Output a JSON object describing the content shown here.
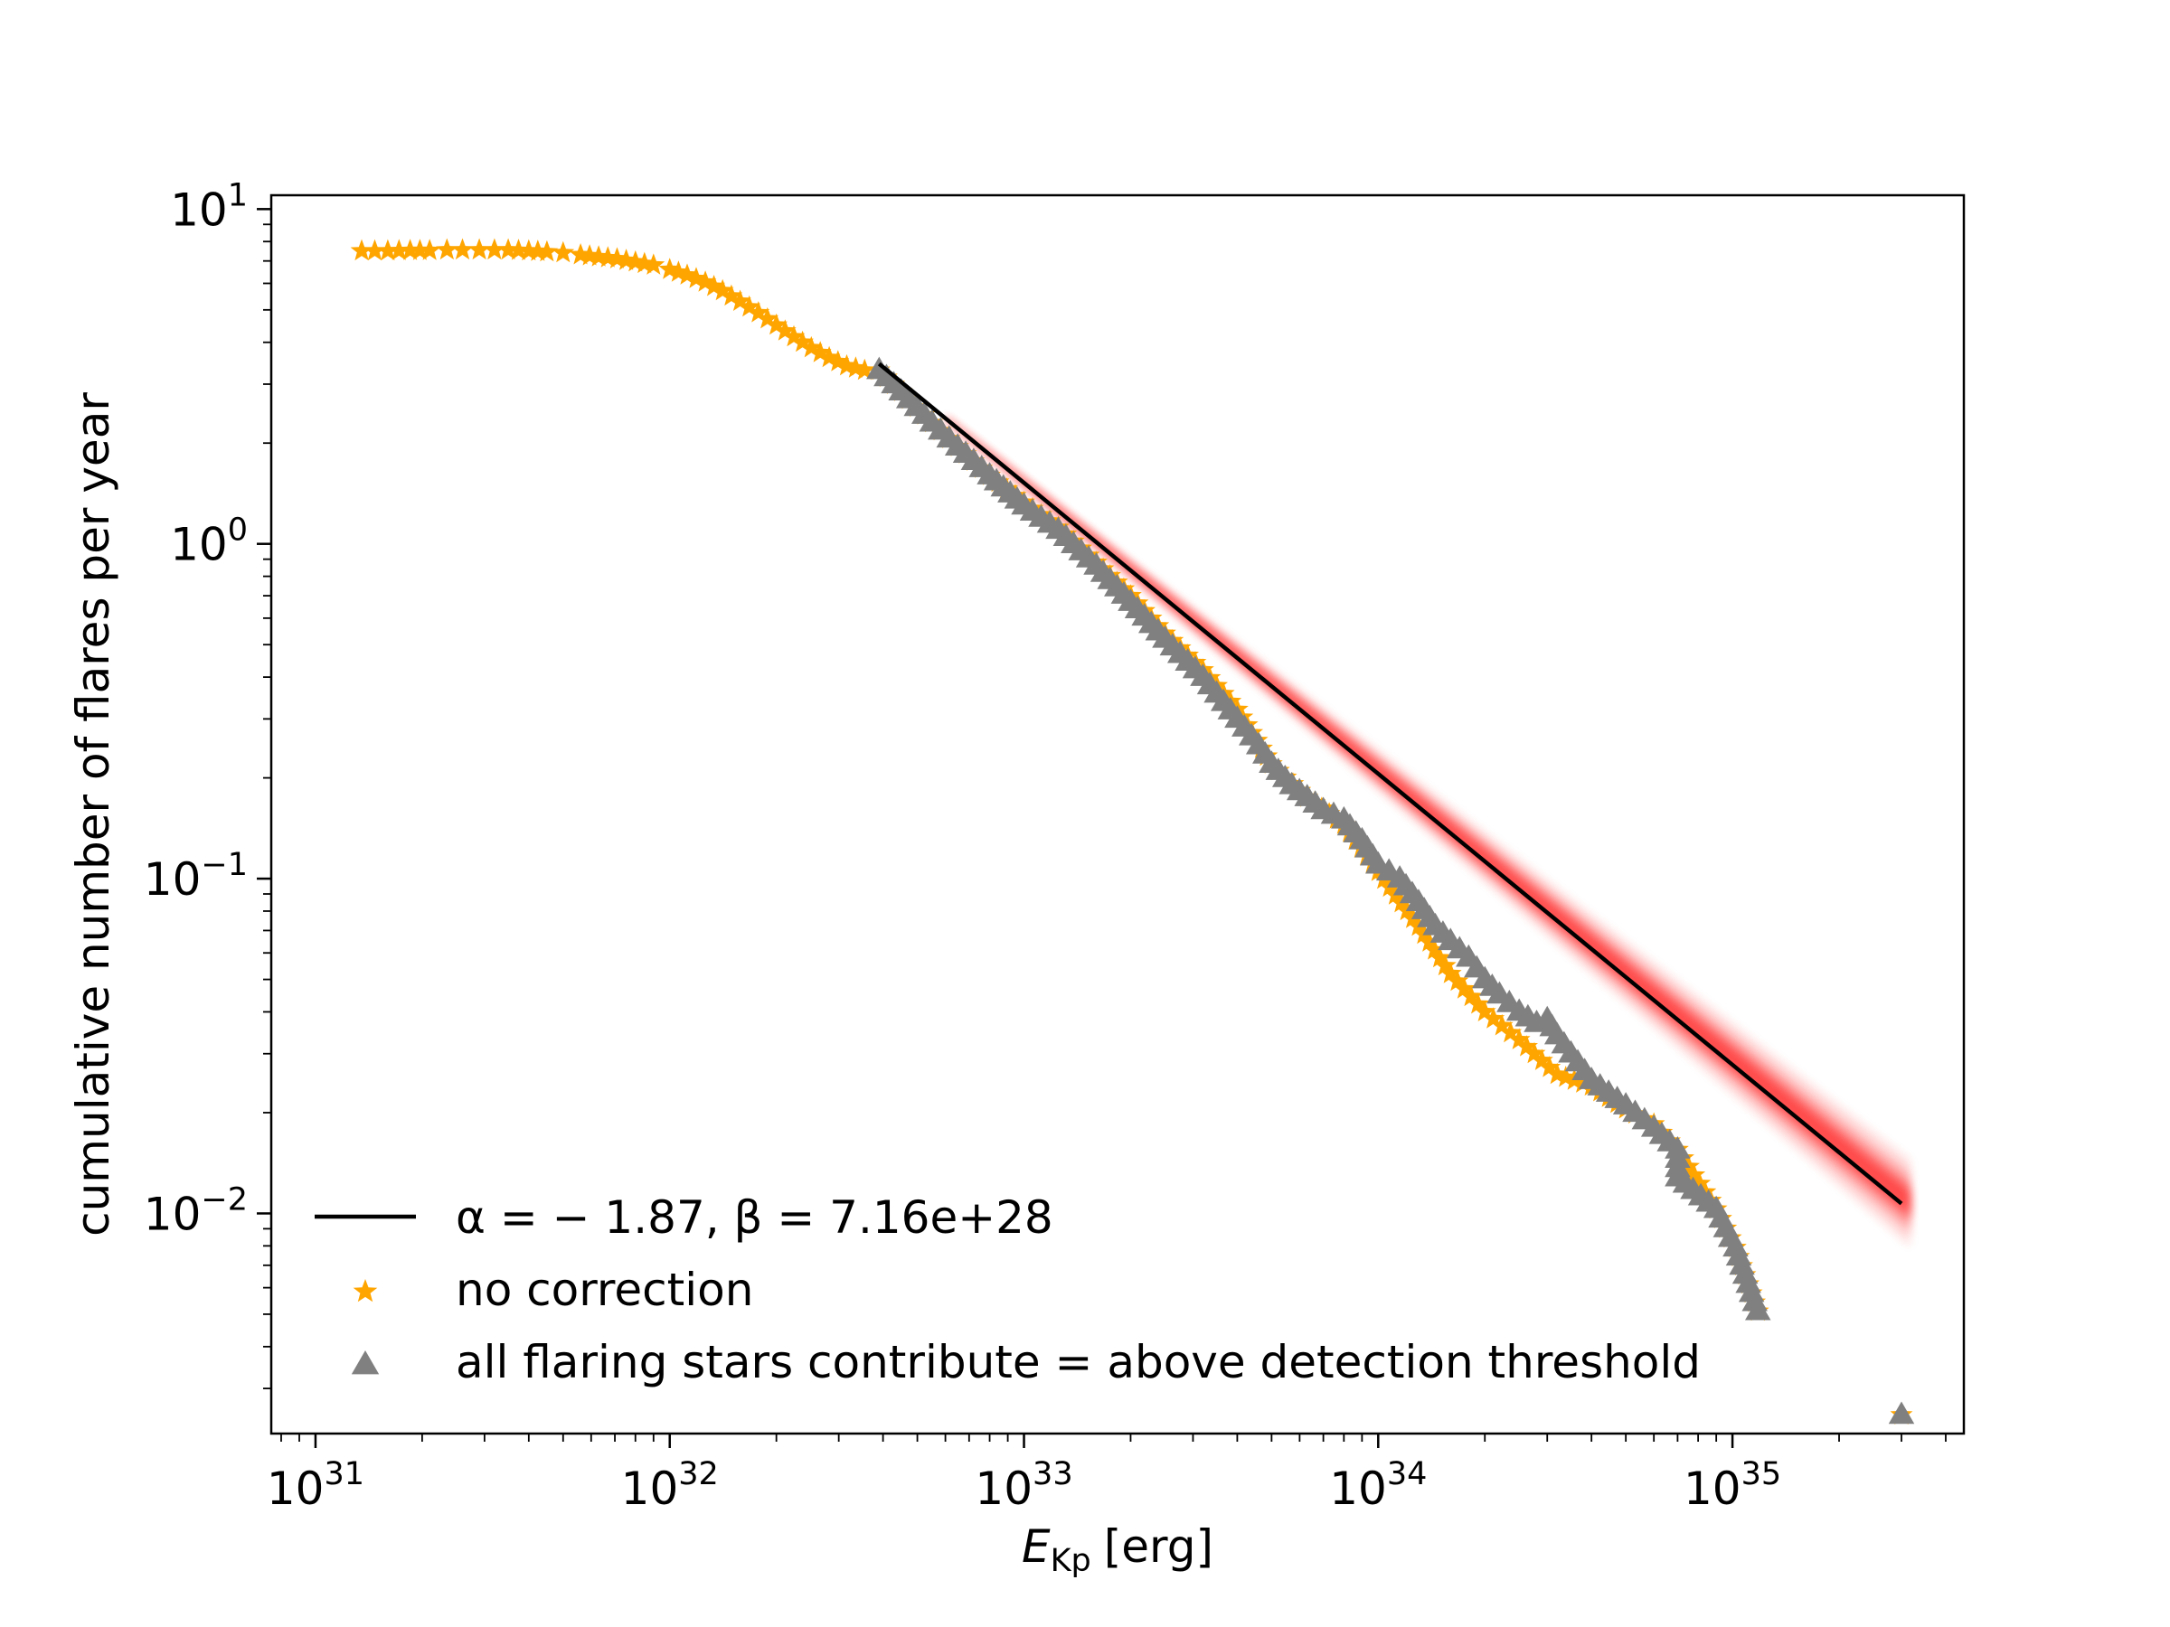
{
  "chart_data": {
    "type": "scatter",
    "title": "",
    "xlabel": "E_Kp [erg]",
    "xlabel_main": "E",
    "xlabel_sub": "Kp",
    "xlabel_unit": "[erg]",
    "ylabel": "cumulative number of flares per year",
    "xscale": "log",
    "yscale": "log",
    "xlim": [
      7.5e+30,
      4.5e+35
    ],
    "ylim": [
      0.0022,
      11.0
    ],
    "grid": false,
    "legend_position": "lower-left",
    "x_ticks": [
      {
        "value": 1e+31,
        "base": "10",
        "exp": "31"
      },
      {
        "value": 1e+32,
        "base": "10",
        "exp": "32"
      },
      {
        "value": 1e+33,
        "base": "10",
        "exp": "33"
      },
      {
        "value": 1e+34,
        "base": "10",
        "exp": "34"
      },
      {
        "value": 1e+35,
        "base": "10",
        "exp": "35"
      }
    ],
    "y_ticks": [
      {
        "value": 10,
        "base": "10",
        "exp": "1"
      },
      {
        "value": 1,
        "base": "10",
        "exp": "0"
      },
      {
        "value": 0.1,
        "base": "10",
        "exp": "−1"
      },
      {
        "value": 0.01,
        "base": "10",
        "exp": "−2"
      }
    ],
    "fit_line": {
      "label": "α = − 1.87, β = 7.16e+28",
      "color": "#000000",
      "x": [
        3.9e+32,
        3e+35
      ],
      "y": [
        3.45,
        0.0107
      ],
      "uncertainty_color": "#ff0000",
      "uncertainty_start_x": 6e+32,
      "uncertainty_width_factor_end": 1.35
    },
    "series": [
      {
        "name": "no correction",
        "marker": "star",
        "color": "#ffa500",
        "x": [
          1.35e+31,
          1.6e+31,
          1.85e+31,
          2.1e+31,
          2.35e+31,
          2.6e+31,
          2.9e+31,
          3.2e+31,
          3.5e+31,
          4e+31,
          4.5e+31,
          5e+31,
          5.6e+31,
          6.3e+31,
          7.1e+31,
          8e+31,
          9e+31,
          1e+32,
          1.12e+32,
          1.26e+32,
          1.41e+32,
          1.58e+32,
          1.78e+32,
          2e+32,
          2.24e+32,
          2.51e+32,
          2.82e+32,
          3.16e+32,
          3.55e+32,
          3.9e+32,
          4.5e+32,
          5.5e+32,
          6.5e+32,
          8e+32,
          1e+33,
          1.25e+33,
          1.6e+33,
          2e+33,
          2.5e+33,
          3.2e+33,
          4e+33,
          5e+33,
          6.3e+33,
          8e+33,
          1e+34,
          1.3e+34,
          1.6e+34,
          2e+34,
          2.5e+34,
          3.2e+34,
          4e+34,
          5e+34,
          6e+34,
          7e+34,
          9e+34,
          1.02e+35,
          1.18e+35,
          3e+35
        ],
        "y": [
          7.5,
          7.5,
          7.52,
          7.52,
          7.55,
          7.55,
          7.55,
          7.55,
          7.55,
          7.5,
          7.45,
          7.4,
          7.3,
          7.2,
          7.1,
          6.95,
          6.8,
          6.6,
          6.35,
          6.05,
          5.7,
          5.3,
          4.9,
          4.5,
          4.15,
          3.85,
          3.6,
          3.4,
          3.3,
          3.3,
          2.85,
          2.3,
          1.95,
          1.6,
          1.33,
          1.12,
          0.88,
          0.7,
          0.54,
          0.42,
          0.32,
          0.22,
          0.175,
          0.145,
          0.105,
          0.072,
          0.052,
          0.04,
          0.033,
          0.026,
          0.024,
          0.0205,
          0.0185,
          0.0155,
          0.0103,
          0.0079,
          0.0051,
          0.0025
        ]
      },
      {
        "name": "all flaring stars contribute = above detection threshold",
        "marker": "triangle",
        "color": "#808080",
        "x": [
          3.9e+32,
          4.5e+32,
          5.5e+32,
          6.5e+32,
          8e+32,
          1e+33,
          1.25e+33,
          1.6e+33,
          2e+33,
          2.5e+33,
          3.2e+33,
          4e+33,
          4.6e+33,
          5e+33,
          5.7e+33,
          6.3e+33,
          7e+33,
          8e+33,
          9e+33,
          1e+34,
          1.15e+34,
          1.3e+34,
          1.45e+34,
          1.6e+34,
          1.8e+34,
          2e+34,
          2.2e+34,
          2.5e+34,
          2.8e+34,
          3e+34,
          3.2e+34,
          3.5e+34,
          4e+34,
          5e+34,
          6e+34,
          7e+34,
          7e+34,
          9e+34,
          1.02e+35,
          1.18e+35,
          3e+35
        ],
        "y": [
          3.3,
          2.85,
          2.3,
          1.95,
          1.6,
          1.3,
          1.1,
          0.86,
          0.67,
          0.52,
          0.4,
          0.3,
          0.25,
          0.22,
          0.19,
          0.175,
          0.16,
          0.15,
          0.13,
          0.11,
          0.1,
          0.085,
          0.072,
          0.065,
          0.058,
          0.05,
          0.045,
          0.04,
          0.037,
          0.038,
          0.034,
          0.03,
          0.025,
          0.021,
          0.018,
          0.0155,
          0.0128,
          0.0103,
          0.0079,
          0.0051,
          0.0025
        ]
      }
    ]
  }
}
